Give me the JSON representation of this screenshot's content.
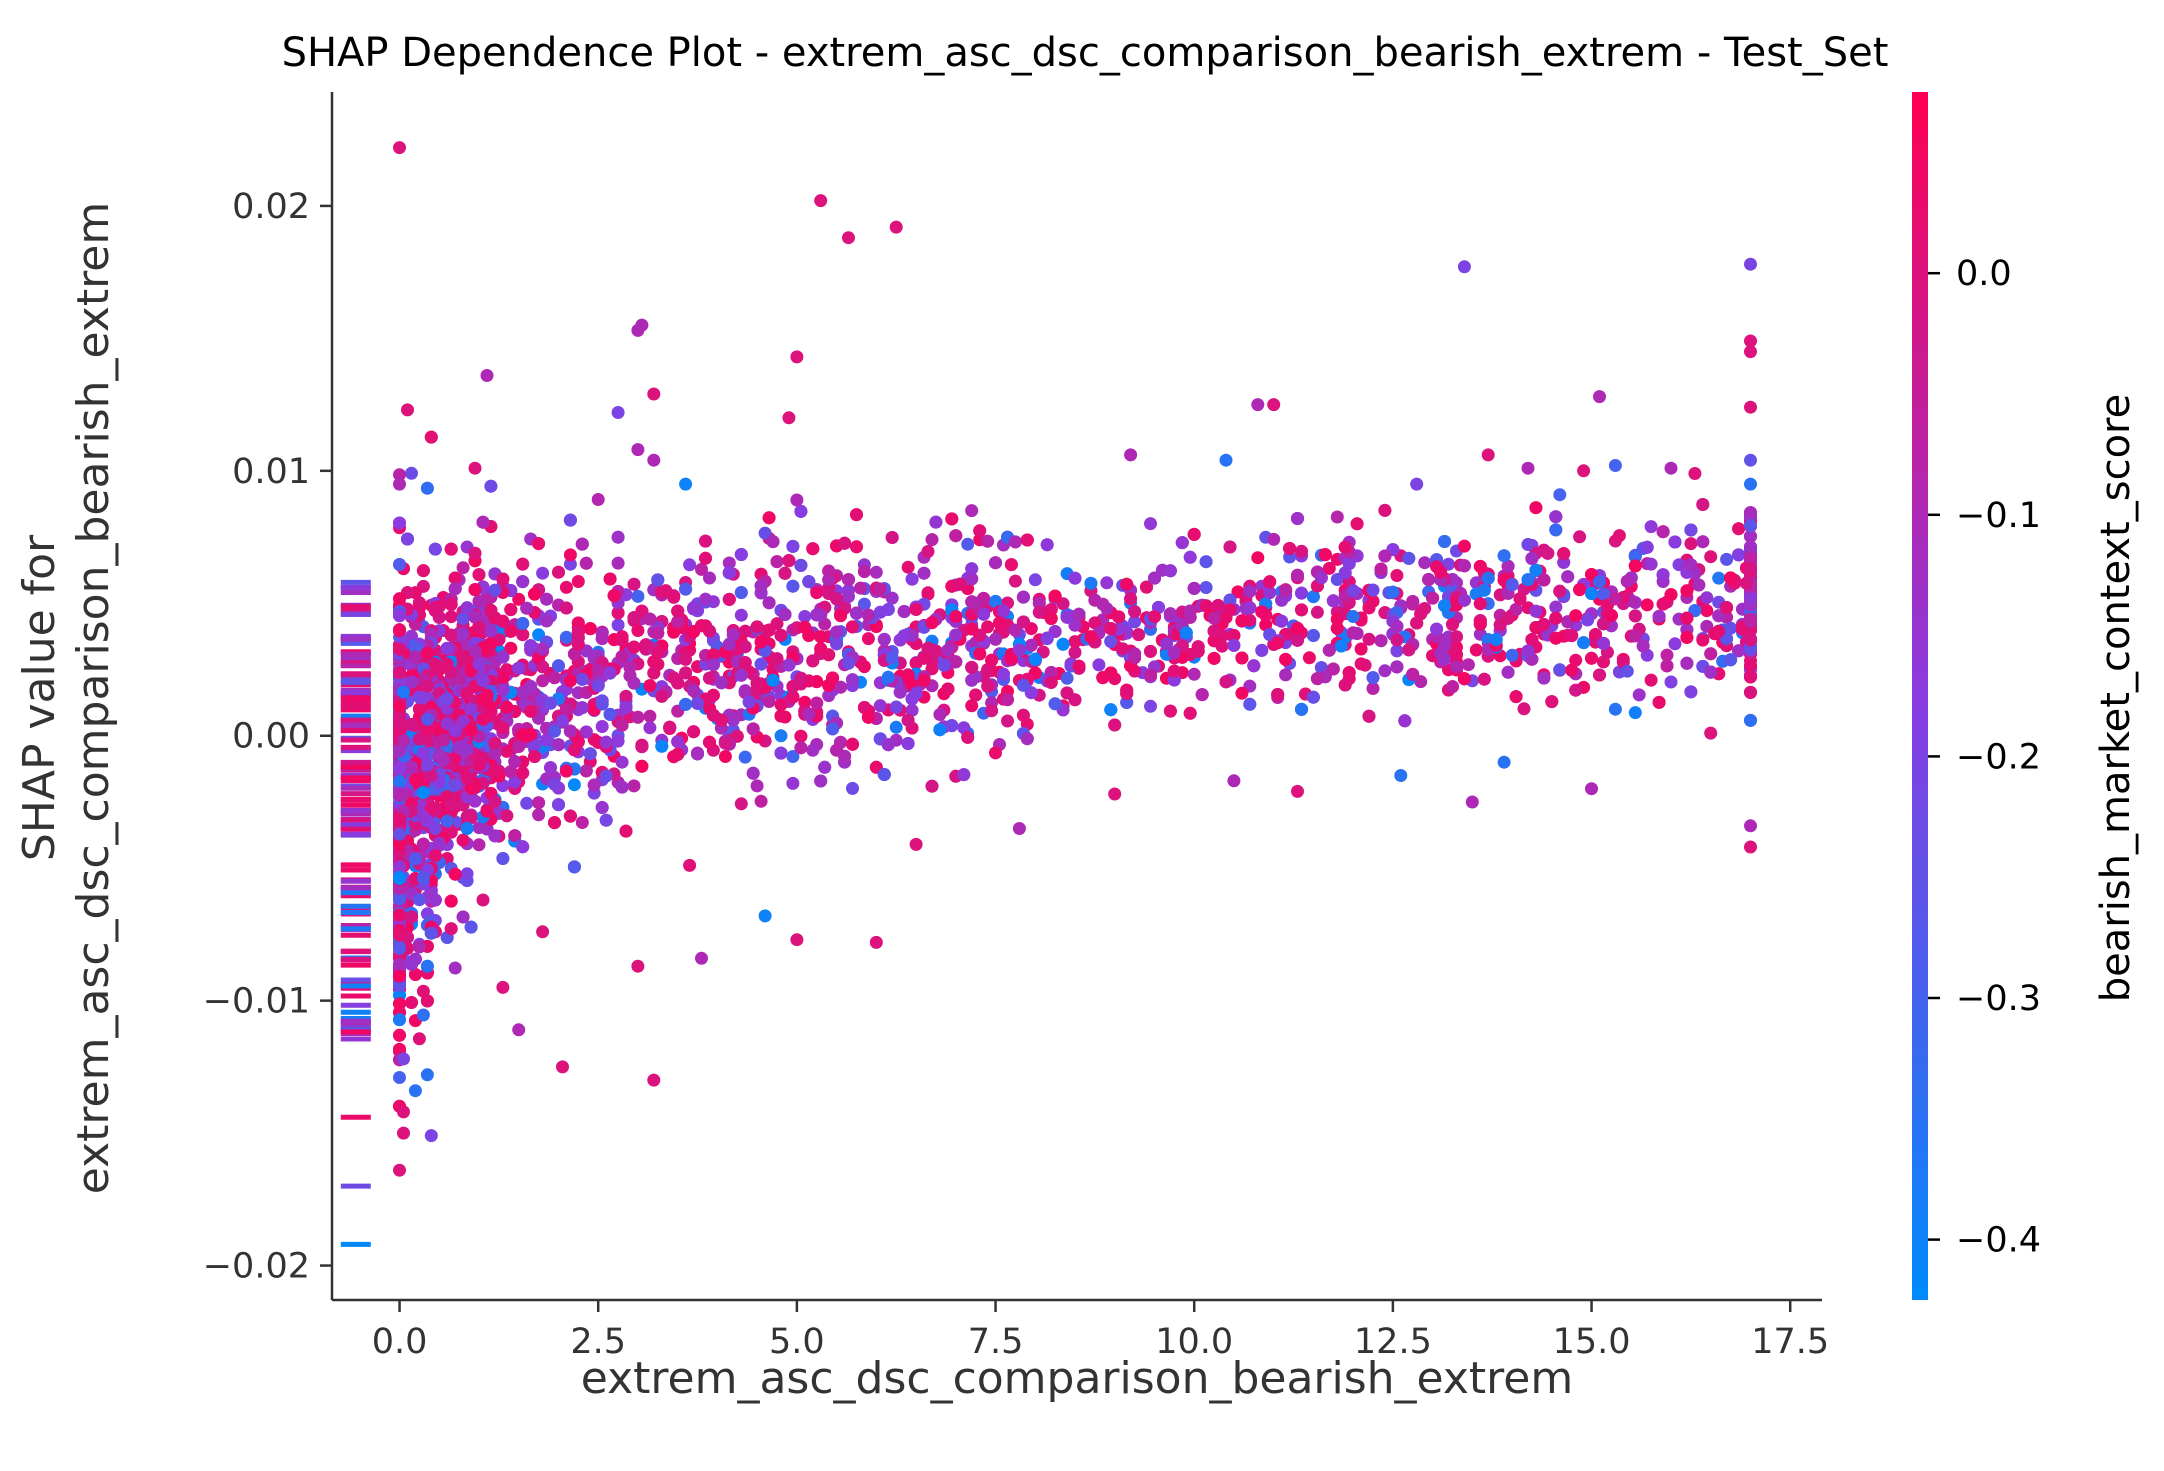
{
  "chart_data": {
    "type": "scatter",
    "title": "SHAP Dependence Plot - extrem_asc_dsc_comparison_bearish_extrem - Test_Set",
    "xlabel": "extrem_asc_dsc_comparison_bearish_extrem",
    "ylabel_lines": [
      "SHAP value for",
      "extrem_asc_dsc_comparison_bearish_extrem"
    ],
    "xlim": [
      -0.85,
      17.9
    ],
    "ylim": [
      -0.0213,
      0.0243
    ],
    "x_ticks": [
      0.0,
      2.5,
      5.0,
      7.5,
      10.0,
      12.5,
      15.0,
      17.5
    ],
    "x_tick_labels": [
      "0.0",
      "2.5",
      "5.0",
      "7.5",
      "10.0",
      "12.5",
      "15.0",
      "17.5"
    ],
    "y_ticks": [
      0.02,
      0.01,
      0.0,
      -0.01,
      -0.02
    ],
    "y_tick_labels": [
      "0.02",
      "0.01",
      "0.00",
      "−0.01",
      "−0.02"
    ],
    "colorbar": {
      "label": "bearish_market_context_score",
      "range": [
        -0.425,
        0.075
      ],
      "ticks": [
        0.0,
        -0.1,
        -0.2,
        -0.3,
        -0.4
      ],
      "tick_labels": [
        "0.0",
        "−0.1",
        "−0.2",
        "−0.3",
        "−0.4"
      ],
      "colors": [
        "#008afb",
        "#ff0052"
      ]
    },
    "points": [
      [
        0.0,
        0.0222,
        0.0
      ],
      [
        5.3,
        0.0202,
        0.0
      ],
      [
        5.65,
        0.0188,
        0.0
      ],
      [
        6.25,
        0.0192,
        0.0
      ],
      [
        13.4,
        0.0177,
        -0.2
      ],
      [
        17.0,
        0.0178,
        -0.2
      ],
      [
        3.0,
        0.0153,
        -0.1
      ],
      [
        3.05,
        0.0155,
        -0.1
      ],
      [
        5.0,
        0.0143,
        0.0
      ],
      [
        1.1,
        0.0136,
        -0.1
      ],
      [
        3.2,
        0.0129,
        0.0
      ],
      [
        0.1,
        0.0123,
        0.0
      ],
      [
        2.75,
        0.0122,
        -0.2
      ],
      [
        4.9,
        0.012,
        0.0
      ],
      [
        10.8,
        0.0125,
        -0.1
      ],
      [
        11.0,
        0.0125,
        0.0
      ],
      [
        15.1,
        0.0128,
        -0.1
      ],
      [
        17.0,
        0.0149,
        0.0
      ],
      [
        17.0,
        0.0145,
        0.0
      ],
      [
        17.0,
        0.0124,
        0.0
      ],
      [
        3.0,
        0.0108,
        -0.1
      ],
      [
        3.2,
        0.0104,
        -0.1
      ],
      [
        0.95,
        0.0101,
        0.0
      ],
      [
        10.4,
        0.0104,
        -0.35
      ],
      [
        9.2,
        0.0106,
        -0.1
      ],
      [
        13.7,
        0.0106,
        0.0
      ],
      [
        14.2,
        0.0101,
        -0.1
      ],
      [
        14.9,
        0.01,
        0.0
      ],
      [
        15.3,
        0.0102,
        -0.3
      ],
      [
        16.0,
        0.0101,
        -0.1
      ],
      [
        16.3,
        0.0099,
        0.0
      ],
      [
        0.0,
        0.0095,
        -0.1
      ],
      [
        3.6,
        0.0095,
        -0.4
      ],
      [
        5.0,
        0.0089,
        -0.1
      ],
      [
        12.8,
        0.0095,
        -0.2
      ],
      [
        14.6,
        0.0091,
        -0.3
      ],
      [
        17.0,
        0.0104,
        -0.25
      ],
      [
        17.0,
        0.0095,
        -0.35
      ],
      [
        0.0,
        -0.0164,
        0.0
      ],
      [
        0.05,
        -0.015,
        0.0
      ],
      [
        0.05,
        -0.0142,
        0.0
      ],
      [
        0.0,
        -0.0129,
        -0.3
      ],
      [
        0.05,
        -0.0122,
        -0.2
      ],
      [
        0.2,
        -0.0134,
        -0.35
      ],
      [
        0.35,
        -0.0128,
        -0.35
      ],
      [
        2.05,
        -0.0125,
        0.0
      ],
      [
        3.2,
        -0.013,
        0.0
      ],
      [
        1.5,
        -0.0111,
        -0.1
      ],
      [
        3.0,
        -0.0087,
        0.0
      ],
      [
        3.8,
        -0.0084,
        -0.1
      ],
      [
        5.0,
        -0.0077,
        0.0
      ],
      [
        6.0,
        -0.0078,
        0.0
      ],
      [
        4.6,
        -0.0068,
        -0.4
      ],
      [
        1.3,
        -0.0095,
        0.0
      ],
      [
        1.05,
        -0.0062,
        0.0
      ],
      [
        1.8,
        -0.0074,
        0.0
      ],
      [
        6.5,
        -0.0041,
        0.0
      ],
      [
        7.8,
        -0.0035,
        -0.1
      ],
      [
        11.3,
        -0.0021,
        0.0
      ],
      [
        12.6,
        -0.0015,
        -0.35
      ],
      [
        13.5,
        -0.0025,
        -0.1
      ],
      [
        15.0,
        -0.002,
        -0.1
      ],
      [
        16.5,
        0.0001,
        0.0
      ],
      [
        17.0,
        -0.0042,
        0.0
      ],
      [
        17.0,
        -0.0034,
        -0.1
      ],
      [
        9.0,
        -0.0022,
        0.0
      ],
      [
        10.5,
        -0.0017,
        -0.1
      ],
      [
        13.9,
        -0.001,
        -0.35
      ],
      [
        15.3,
        0.001,
        -0.35
      ],
      [
        12.0,
        0.0045,
        -0.35
      ],
      [
        8.9,
        0.0048,
        -0.1
      ],
      [
        7.2,
        0.0085,
        -0.1
      ]
    ],
    "generated_cloud": true
  }
}
